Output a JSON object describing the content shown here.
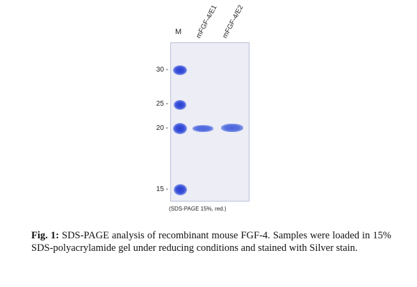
{
  "figure": {
    "marker_lane_label": "M",
    "lane_labels": [
      "mFGF-4/E1",
      "mFGF-4/E2"
    ],
    "mw_markers": [
      "30 -",
      "25 -",
      "20 -",
      "15 -"
    ],
    "gel_note": "(SDS-PAGE 15%, red.)",
    "band_color": "#3a52da",
    "gel_background": "#ecedf5"
  },
  "caption": {
    "prefix": "Fig. 1:",
    "text": " SDS-PAGE analysis of recombinant mouse FGF-4. Samples were loaded in 15% SDS-polyacrylamide gel under reducing conditions and stained with Silver stain."
  }
}
